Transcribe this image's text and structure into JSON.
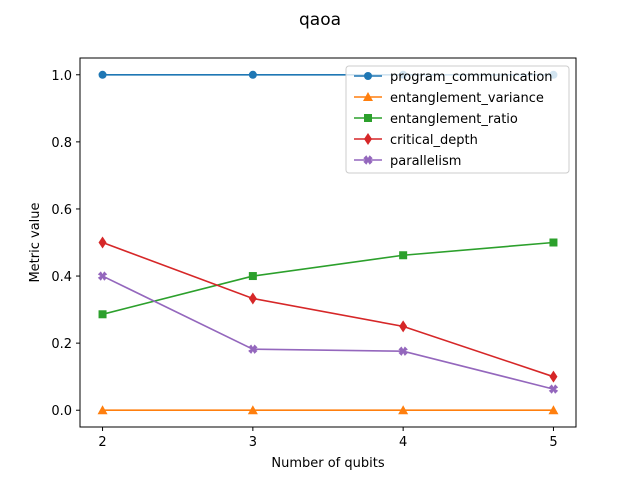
{
  "chart_data": {
    "type": "line",
    "title": "qaoa",
    "xlabel": "Number of qubits",
    "ylabel": "Metric value",
    "x": [
      2,
      3,
      4,
      5
    ],
    "x_ticks": [
      "2",
      "3",
      "4",
      "5"
    ],
    "y_ticks": [
      "0.0",
      "0.2",
      "0.4",
      "0.6",
      "0.8",
      "1.0"
    ],
    "xlim": [
      1.85,
      5.15
    ],
    "ylim": [
      -0.05,
      1.05
    ],
    "grid": false,
    "legend_position": "top-right",
    "series": [
      {
        "name": "program_communication",
        "values": [
          1.0,
          1.0,
          1.0,
          1.0
        ],
        "color": "#1f77b4",
        "marker": "circle"
      },
      {
        "name": "entanglement_variance",
        "values": [
          0.0,
          0.0,
          0.0,
          0.0
        ],
        "color": "#ff7f0e",
        "marker": "triangle"
      },
      {
        "name": "entanglement_ratio",
        "values": [
          0.286,
          0.4,
          0.462,
          0.5
        ],
        "color": "#2ca02c",
        "marker": "square"
      },
      {
        "name": "critical_depth",
        "values": [
          0.5,
          0.333,
          0.25,
          0.1
        ],
        "color": "#d62728",
        "marker": "diamond"
      },
      {
        "name": "parallelism",
        "values": [
          0.4,
          0.182,
          0.176,
          0.063
        ],
        "color": "#9467bd",
        "marker": "x"
      }
    ]
  }
}
